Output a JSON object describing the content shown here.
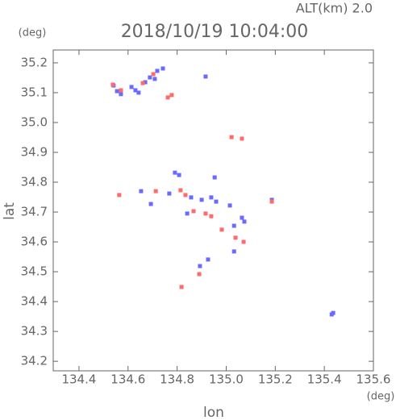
{
  "chart_data": {
    "type": "scatter",
    "title": "2018/10/19 10:04:00",
    "subtitle": "ALT(km) 2.0",
    "y_unit": "(deg)",
    "x_unit": "(deg)",
    "xlabel": "lon",
    "ylabel": "lat",
    "xlim": [
      134.295,
      135.6
    ],
    "ylim": [
      34.168,
      35.243
    ],
    "xticks": [
      134.4,
      134.6,
      134.8,
      {
        "value": 135,
        "label": "135.0"
      },
      135.2,
      135.4,
      135.6
    ],
    "yticks": [
      34.2,
      34.3,
      34.4,
      34.5,
      34.6,
      34.7,
      34.8,
      34.9,
      {
        "value": 35,
        "label": "35.0"
      },
      35.1,
      35.2
    ],
    "series": [
      {
        "color": "#6a6aff",
        "x": [
          134.541,
          134.555,
          134.571,
          134.614,
          134.63,
          134.67,
          134.689,
          134.719,
          134.742,
          134.709,
          134.643,
          134.916,
          134.653,
          134.693,
          134.791,
          134.808,
          134.857,
          134.9,
          134.939,
          134.959,
          135.015,
          135.064,
          135.032,
          135.074,
          135.186,
          134.893,
          134.926,
          135.032,
          135.436,
          135.43,
          134.953,
          134.768,
          134.841
        ],
        "y": [
          35.124,
          35.105,
          35.095,
          35.119,
          35.108,
          35.135,
          35.151,
          35.173,
          35.181,
          35.146,
          35.1,
          35.154,
          34.77,
          34.727,
          34.832,
          34.824,
          34.749,
          34.741,
          34.749,
          34.735,
          34.722,
          34.681,
          34.654,
          34.668,
          34.741,
          34.519,
          34.541,
          34.568,
          34.362,
          34.357,
          34.816,
          34.762,
          34.695
        ]
      },
      {
        "color": "#ff6a6a",
        "x": [
          134.538,
          134.571,
          134.66,
          134.703,
          134.762,
          134.778,
          134.564,
          134.713,
          134.814,
          134.867,
          134.916,
          134.982,
          135.038,
          135.071,
          135.064,
          135.022,
          135.186,
          134.818,
          134.89,
          134.834,
          134.939
        ],
        "y": [
          35.127,
          35.108,
          35.132,
          35.162,
          35.084,
          35.092,
          34.757,
          34.77,
          34.773,
          34.703,
          34.695,
          34.641,
          34.614,
          34.6,
          34.946,
          34.951,
          34.735,
          34.449,
          34.492,
          34.757,
          34.686
        ]
      }
    ]
  }
}
